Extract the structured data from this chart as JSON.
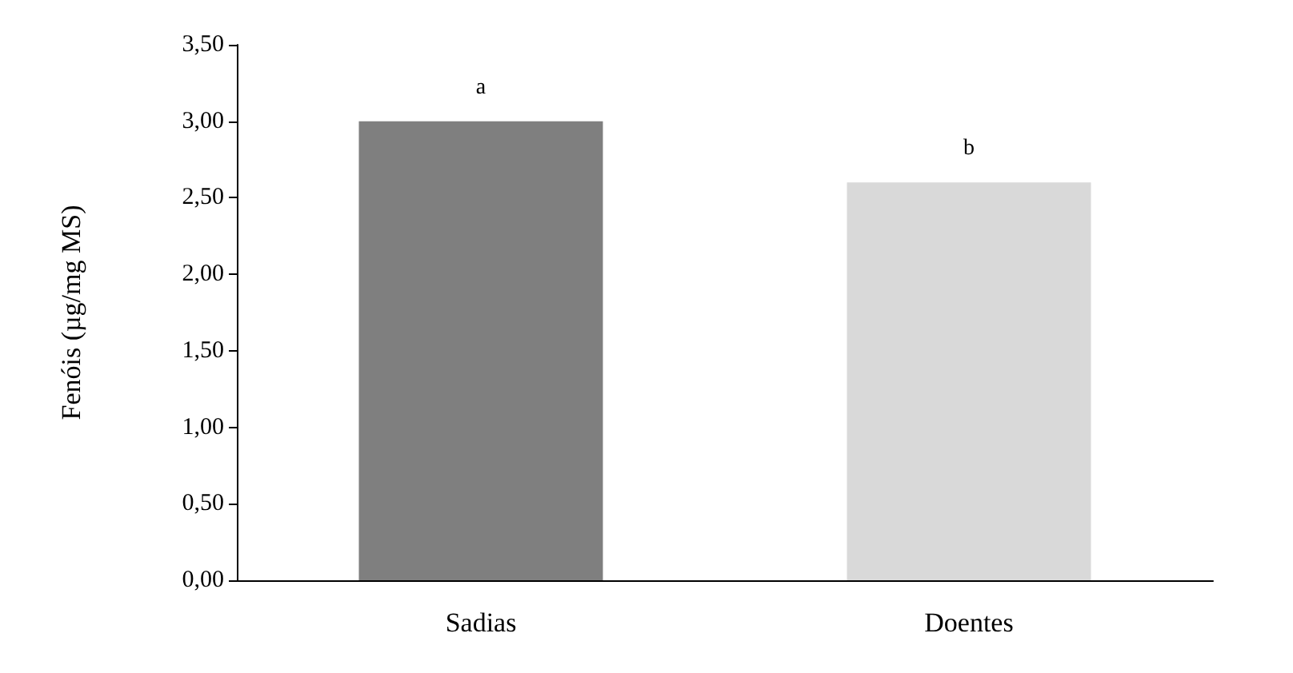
{
  "chart_data": {
    "type": "bar",
    "ylabel": "Fenóis (µg/mg MS)",
    "categories": [
      "Sadias",
      "Doentes"
    ],
    "values": [
      3.0,
      2.6
    ],
    "colors": [
      "#7f7f7f",
      "#d9d9d9"
    ],
    "ylim": [
      0,
      3.5
    ],
    "yticks": [
      {
        "value": 0,
        "label": "0,00"
      },
      {
        "value": 0.5,
        "label": "0,50"
      },
      {
        "value": 1,
        "label": "1,00"
      },
      {
        "value": 1.5,
        "label": "1,50"
      },
      {
        "value": 2,
        "label": "2,00"
      },
      {
        "value": 2.5,
        "label": "2,50"
      },
      {
        "value": 3,
        "label": "3,00"
      },
      {
        "value": 3.5,
        "label": "3,50"
      }
    ],
    "annotations": [
      {
        "text": "a",
        "x": "Sadias",
        "y": 3.0
      },
      {
        "text": "b",
        "x": "Doentes",
        "y": 2.6
      }
    ],
    "grid": false
  }
}
